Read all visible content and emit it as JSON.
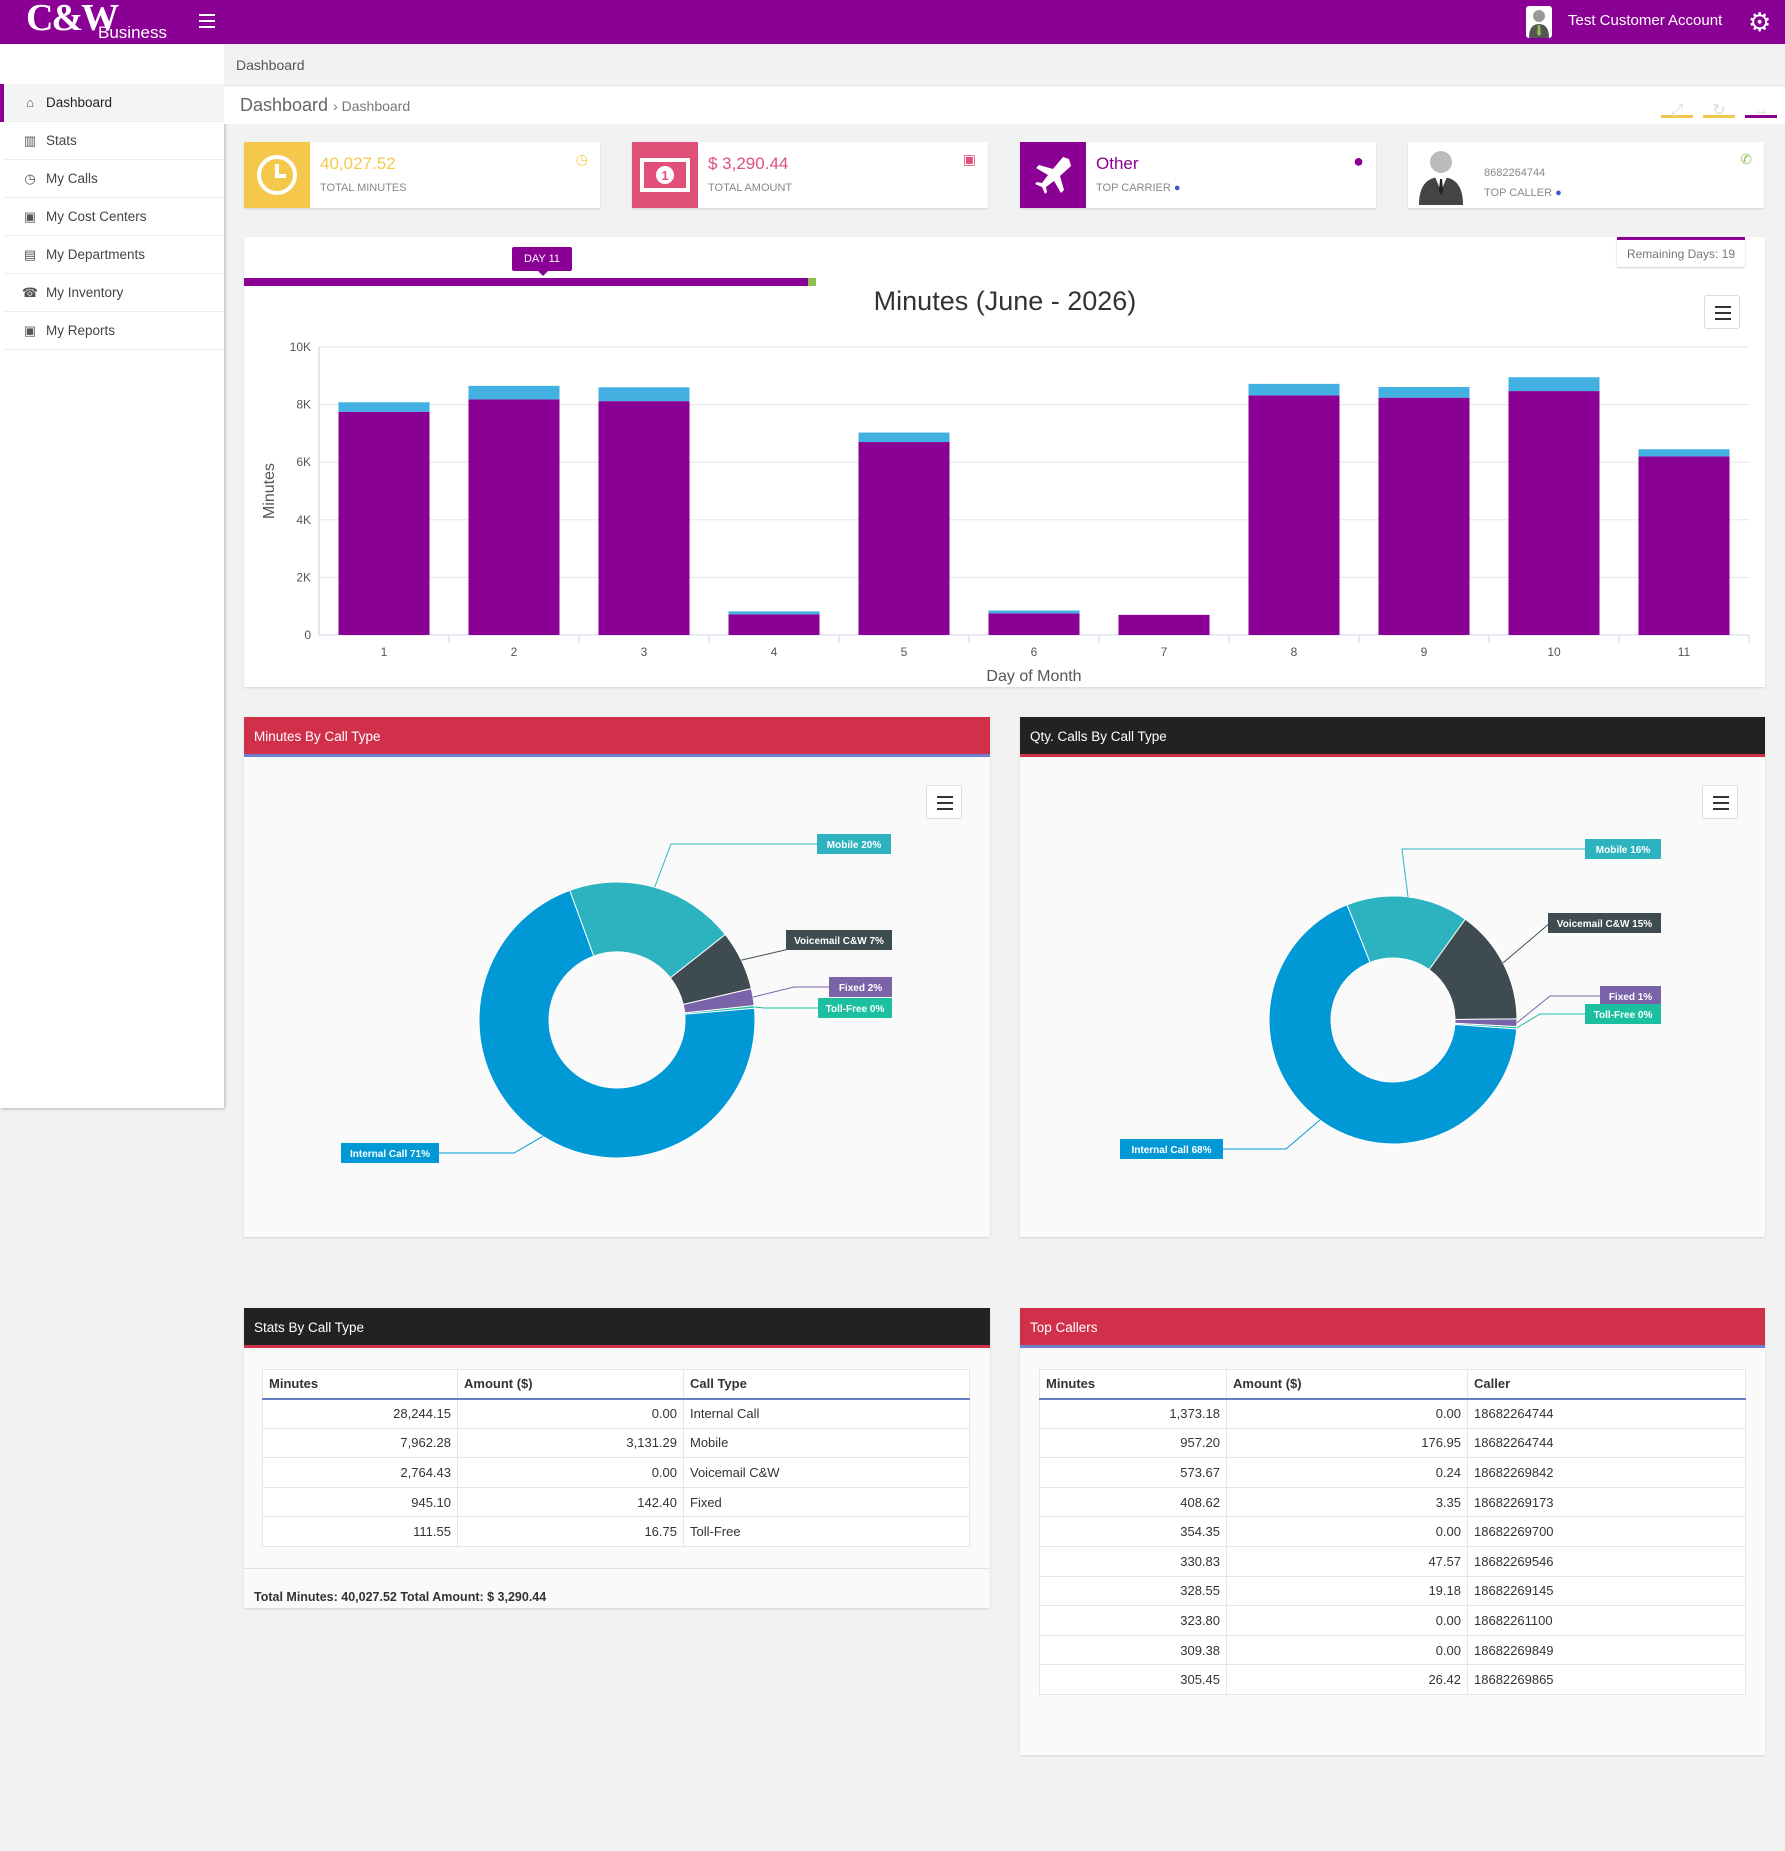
{
  "app": {
    "logo": "C&W",
    "logo_sub": "Business",
    "account_name": "Test Customer Account"
  },
  "sidebar": {
    "items": [
      {
        "label": "Dashboard",
        "icon": "home-icon",
        "active": true
      },
      {
        "label": "Stats",
        "icon": "bar-chart-icon"
      },
      {
        "label": "My Calls",
        "icon": "clock-icon"
      },
      {
        "label": "My Cost Centers",
        "icon": "money-icon"
      },
      {
        "label": "My Departments",
        "icon": "building-icon"
      },
      {
        "label": "My Inventory",
        "icon": "phone-icon"
      },
      {
        "label": "My Reports",
        "icon": "money-icon"
      }
    ]
  },
  "breadcrumb": "Dashboard",
  "page_header": {
    "title": "Dashboard",
    "subtitle": "Dashboard"
  },
  "cards": [
    {
      "value": "40,027.52",
      "label": "TOTAL MINUTES",
      "color": "#f5c84b"
    },
    {
      "value": "$ 3,290.44",
      "label": "TOTAL AMOUNT",
      "color": "#e05079"
    },
    {
      "value": "Other",
      "label": "TOP CARRIER",
      "color": "#8b0094"
    },
    {
      "value": "8682264744",
      "label": "TOP CALLER",
      "color": "#8cc152"
    }
  ],
  "progress": {
    "day_badge": "DAY 11",
    "remaining": "Remaining Days: 19",
    "elapsed_fraction": 0.367
  },
  "chart_data": [
    {
      "type": "bar",
      "title": "Minutes (June - 2026)",
      "xlabel": "Day of Month",
      "ylabel": "Minutes",
      "categories": [
        "1",
        "2",
        "3",
        "4",
        "5",
        "6",
        "7",
        "8",
        "9",
        "10",
        "11"
      ],
      "ylim": [
        0,
        10000
      ],
      "yticks": [
        "0",
        "2K",
        "4K",
        "6K",
        "8K",
        "10K"
      ],
      "stacked": true,
      "grid": true,
      "series": [
        {
          "color": "#8b0094",
          "values": [
            7750,
            8180,
            8120,
            720,
            6700,
            750,
            700,
            8320,
            8240,
            8470,
            6200
          ]
        },
        {
          "color": "#42b0e0",
          "values": [
            330,
            470,
            480,
            100,
            330,
            100,
            0,
            400,
            370,
            480,
            250
          ]
        }
      ]
    },
    {
      "type": "pie",
      "title": "Minutes By Call Type",
      "slices": [
        {
          "label": "Internal Call 71%",
          "value": 71,
          "color": "#0099d6"
        },
        {
          "label": "Mobile 20%",
          "value": 20,
          "color": "#2db3c0"
        },
        {
          "label": "Voicemail C&W 7%",
          "value": 7,
          "color": "#3e4b51"
        },
        {
          "label": "Fixed 2%",
          "value": 2,
          "color": "#7a63a8"
        },
        {
          "label": "Toll-Free 0%",
          "value": 0.3,
          "color": "#1cc0a0"
        }
      ]
    },
    {
      "type": "pie",
      "title": "Qty. Calls By Call Type",
      "slices": [
        {
          "label": "Internal Call 68%",
          "value": 68,
          "color": "#0099d6"
        },
        {
          "label": "Mobile 16%",
          "value": 16,
          "color": "#2db3c0"
        },
        {
          "label": "Voicemail C&W 15%",
          "value": 15,
          "color": "#3e4b51"
        },
        {
          "label": "Fixed 1%",
          "value": 1,
          "color": "#7a63a8"
        },
        {
          "label": "Toll-Free 0%",
          "value": 0.3,
          "color": "#1cc0a0"
        }
      ]
    }
  ],
  "stats_table": {
    "title": "Stats By Call Type",
    "headers": [
      "Minutes",
      "Amount ($)",
      "Call Type"
    ],
    "rows": [
      [
        "28,244.15",
        "0.00",
        "Internal Call"
      ],
      [
        "7,962.28",
        "3,131.29",
        "Mobile"
      ],
      [
        "2,764.43",
        "0.00",
        "Voicemail C&W"
      ],
      [
        "945.10",
        "142.40",
        "Fixed"
      ],
      [
        "111.55",
        "16.75",
        "Toll-Free"
      ]
    ],
    "total": "Total Minutes: 40,027.52 Total Amount: $ 3,290.44"
  },
  "top_callers": {
    "title": "Top Callers",
    "headers": [
      "Minutes",
      "Amount ($)",
      "Caller"
    ],
    "rows": [
      [
        "1,373.18",
        "0.00",
        "18682264744"
      ],
      [
        "957.20",
        "176.95",
        "18682264744"
      ],
      [
        "573.67",
        "0.24",
        "18682269842"
      ],
      [
        "408.62",
        "3.35",
        "18682269173"
      ],
      [
        "354.35",
        "0.00",
        "18682269700"
      ],
      [
        "330.83",
        "47.57",
        "18682269546"
      ],
      [
        "328.55",
        "19.18",
        "18682269145"
      ],
      [
        "323.80",
        "0.00",
        "18682261100"
      ],
      [
        "309.38",
        "0.00",
        "18682269849"
      ],
      [
        "305.45",
        "26.42",
        "18682269865"
      ]
    ]
  }
}
